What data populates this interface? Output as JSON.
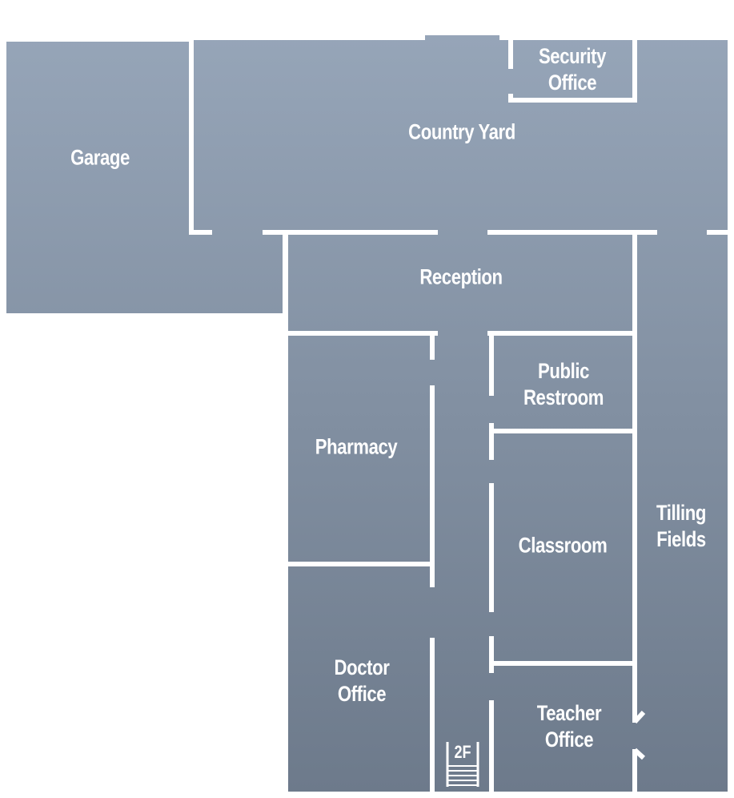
{
  "rooms": {
    "security_office": {
      "line1": "Security",
      "line2": "Office"
    },
    "country_yard": {
      "label": "Country Yard"
    },
    "garage": {
      "label": "Garage"
    },
    "reception": {
      "label": "Reception"
    },
    "public_restroom": {
      "line1": "Public",
      "line2": "Restroom"
    },
    "pharmacy": {
      "label": "Pharmacy"
    },
    "classroom": {
      "label": "Classroom"
    },
    "tilling_fields": {
      "line1": "Tilling",
      "line2": "Fields"
    },
    "doctor_office": {
      "line1": "Doctor",
      "line2": "Office"
    },
    "teacher_office": {
      "line1": "Teacher",
      "line2": "Office"
    }
  },
  "stairs": {
    "label": "2F"
  },
  "colors": {
    "floor_top": "#96a5b8",
    "floor_bottom": "#6d7a8b",
    "wall": "#ffffff",
    "text": "#ffffff",
    "background": "#ffffff"
  }
}
